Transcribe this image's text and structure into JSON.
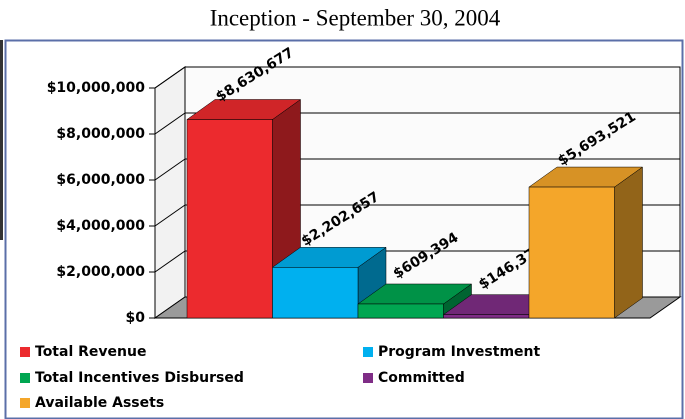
{
  "chart_data": {
    "type": "bar3d",
    "title": "Inception - September 30, 2004",
    "categories": [
      "Total Revenue",
      "Program Investment",
      "Total Incentives Disbursed",
      "Committed",
      "Available Assets"
    ],
    "values": [
      8630677,
      2202657,
      609394,
      146375,
      5693521
    ],
    "value_labels": [
      "$8,630,677",
      "$2,202,657",
      "$609,394",
      "$146,375",
      "$5,693,521"
    ],
    "colors": [
      "#ec2a2e",
      "#00b0ef",
      "#00a651",
      "#7f2d86",
      "#f4a62a"
    ],
    "ylim": [
      0,
      10000000
    ],
    "yticks": [
      {
        "value": 0,
        "label": "$0"
      },
      {
        "value": 2000000,
        "label": "$2,000,000"
      },
      {
        "value": 4000000,
        "label": "$4,000,000"
      },
      {
        "value": 6000000,
        "label": "$6,000,000"
      },
      {
        "value": 8000000,
        "label": "$8,000,000"
      },
      {
        "value": 10000000,
        "label": "$10,000,000"
      }
    ],
    "grid": true
  }
}
